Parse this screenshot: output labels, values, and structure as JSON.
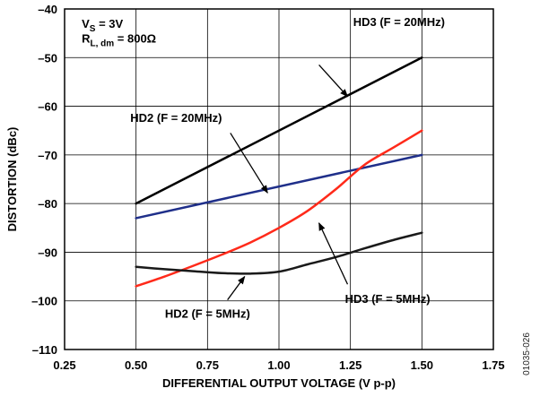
{
  "chart_data": {
    "type": "line",
    "xlabel": "DIFFERENTIAL OUTPUT VOLTAGE (V p-p)",
    "ylabel": "DISTORTION (dBc)",
    "xlim": [
      0.25,
      1.75
    ],
    "ylim": [
      -110,
      -40
    ],
    "x_ticks": [
      0.25,
      0.5,
      0.75,
      1.0,
      1.25,
      1.5,
      1.75
    ],
    "x_tick_labels": [
      "0.25",
      "0.50",
      "0.75",
      "1.00",
      "1.25",
      "1.50",
      "1.75"
    ],
    "y_ticks": [
      -110,
      -100,
      -90,
      -80,
      -70,
      -60,
      -50,
      -40
    ],
    "y_tick_labels": [
      "–110",
      "–100",
      "–90",
      "–80",
      "–70",
      "–60",
      "–50",
      "–40"
    ],
    "grid": true,
    "conditions": {
      "supply": {
        "main": "V",
        "sub": "S",
        "value": " = 3V"
      },
      "load": {
        "main": "R",
        "sub": "L, dm",
        "value": " = 800Ω"
      }
    },
    "series": [
      {
        "name": "HD3 (F = 20MHz)",
        "color": "#000000",
        "x": [
          0.5,
          1.5
        ],
        "y": [
          -80,
          -50
        ]
      },
      {
        "name": "HD2 (F = 20MHz)",
        "color": "#1f2f8a",
        "x": [
          0.5,
          1.5
        ],
        "y": [
          -83,
          -70
        ]
      },
      {
        "name": "HD3 (F = 5MHz)",
        "color": "#ff2a1a",
        "x": [
          0.5,
          0.6,
          0.7,
          0.8,
          0.9,
          1.0,
          1.1,
          1.2,
          1.3,
          1.4,
          1.5
        ],
        "y": [
          -97,
          -95,
          -92.8,
          -90.5,
          -88,
          -85,
          -81.5,
          -77,
          -72,
          -68.5,
          -65
        ]
      },
      {
        "name": "HD2 (F = 5MHz)",
        "color": "#1a1a1a",
        "x": [
          0.5,
          0.6,
          0.7,
          0.8,
          0.9,
          1.0,
          1.1,
          1.2,
          1.3,
          1.4,
          1.5
        ],
        "y": [
          -93,
          -93.5,
          -93.9,
          -94.3,
          -94.4,
          -94,
          -92.5,
          -91,
          -89.2,
          -87.5,
          -86
        ]
      }
    ],
    "annotations": [
      {
        "text": "HD3 (F = 20MHz)",
        "series": 0
      },
      {
        "text": "HD2 (F = 20MHz)",
        "series": 1
      },
      {
        "text": "HD3 (F = 5MHz)",
        "series": 2
      },
      {
        "text": "HD2 (F = 5MHz)",
        "series": 3
      }
    ],
    "figure_code": "01035-026"
  }
}
